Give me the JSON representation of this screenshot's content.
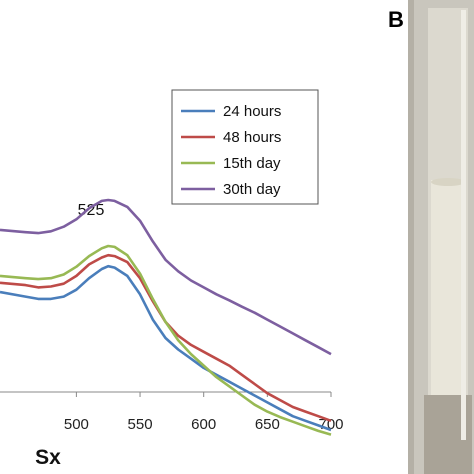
{
  "chart_data": {
    "type": "line",
    "xlabel": "Sx",
    "xlim": [
      440,
      700
    ],
    "ylim": [
      0,
      1
    ],
    "x_ticks": [
      "500",
      "550",
      "600",
      "650",
      "700"
    ],
    "annotation": "525",
    "panel_label": "B",
    "legend_position": "top-right",
    "series": [
      {
        "name": "24 hours",
        "color": "#4a7ebb",
        "x": [
          440,
          460,
          470,
          480,
          490,
          500,
          510,
          520,
          525,
          530,
          540,
          550,
          560,
          570,
          580,
          590,
          600,
          610,
          620,
          630,
          640,
          650,
          660,
          670,
          680,
          690,
          700
        ],
        "y": [
          0.5,
          0.49,
          0.485,
          0.485,
          0.49,
          0.505,
          0.53,
          0.55,
          0.556,
          0.553,
          0.535,
          0.495,
          0.44,
          0.4,
          0.375,
          0.355,
          0.335,
          0.32,
          0.305,
          0.29,
          0.275,
          0.26,
          0.245,
          0.23,
          0.22,
          0.21,
          0.2
        ]
      },
      {
        "name": "48 hours",
        "color": "#be4b48",
        "x": [
          440,
          460,
          470,
          480,
          490,
          500,
          510,
          520,
          525,
          530,
          540,
          550,
          560,
          570,
          580,
          590,
          600,
          610,
          620,
          630,
          640,
          650,
          660,
          670,
          680,
          690,
          700
        ],
        "y": [
          0.52,
          0.515,
          0.51,
          0.512,
          0.518,
          0.535,
          0.56,
          0.575,
          0.58,
          0.578,
          0.565,
          0.53,
          0.48,
          0.435,
          0.405,
          0.385,
          0.37,
          0.355,
          0.34,
          0.32,
          0.3,
          0.28,
          0.265,
          0.25,
          0.24,
          0.23,
          0.22
        ]
      },
      {
        "name": "15th day",
        "color": "#98b954",
        "x": [
          440,
          460,
          470,
          480,
          490,
          500,
          510,
          520,
          525,
          530,
          540,
          550,
          560,
          570,
          580,
          590,
          600,
          610,
          620,
          630,
          640,
          650,
          660,
          670,
          680,
          690,
          700
        ],
        "y": [
          0.535,
          0.53,
          0.528,
          0.53,
          0.538,
          0.555,
          0.578,
          0.595,
          0.6,
          0.598,
          0.58,
          0.54,
          0.485,
          0.435,
          0.395,
          0.365,
          0.34,
          0.315,
          0.295,
          0.275,
          0.255,
          0.24,
          0.228,
          0.218,
          0.208,
          0.198,
          0.19
        ]
      },
      {
        "name": "30th day",
        "color": "#7d5fa0",
        "x": [
          440,
          460,
          470,
          480,
          490,
          500,
          510,
          520,
          525,
          530,
          540,
          550,
          560,
          570,
          580,
          590,
          600,
          610,
          620,
          630,
          640,
          650,
          660,
          670,
          680,
          690,
          700
        ],
        "y": [
          0.635,
          0.63,
          0.628,
          0.632,
          0.642,
          0.658,
          0.682,
          0.698,
          0.7,
          0.698,
          0.685,
          0.655,
          0.61,
          0.57,
          0.545,
          0.525,
          0.51,
          0.495,
          0.482,
          0.468,
          0.455,
          0.44,
          0.425,
          0.41,
          0.395,
          0.38,
          0.365
        ]
      }
    ]
  }
}
